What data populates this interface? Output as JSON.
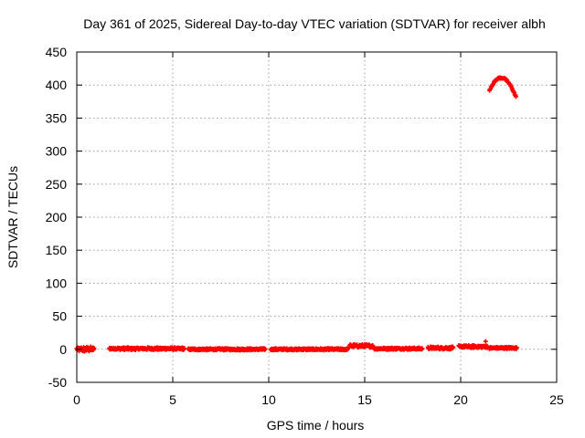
{
  "chart_data": {
    "type": "scatter",
    "title": "Day 361 of 2025, Sidereal Day-to-day VTEC variation (SDTVAR) for receiver albh",
    "xlabel": "GPS time / hours",
    "ylabel": "SDTVAR / TECUs",
    "xlim": [
      0,
      25
    ],
    "ylim": [
      -50,
      450
    ],
    "xticks": [
      0,
      5,
      10,
      15,
      20,
      25
    ],
    "yticks": [
      -50,
      0,
      50,
      100,
      150,
      200,
      250,
      300,
      350,
      400,
      450
    ],
    "grid": true,
    "marker_color": "#ff0000",
    "series": [
      {
        "name": "SDTVAR",
        "segments": [
          {
            "x_start": 0.0,
            "x_end": 0.9,
            "y_base": 0,
            "y_noise": 4
          },
          {
            "x_start": 1.7,
            "x_end": 5.6,
            "y_base": 1,
            "y_noise": 2
          },
          {
            "x_start": 5.8,
            "x_end": 9.8,
            "y_base": 0,
            "y_noise": 1.5
          },
          {
            "x_start": 10.1,
            "x_end": 14.1,
            "y_base": 0,
            "y_noise": 1.5
          },
          {
            "x_start": 14.2,
            "x_end": 15.4,
            "y_base": 5,
            "y_noise": 2.5
          },
          {
            "x_start": 15.5,
            "x_end": 18.0,
            "y_base": 1,
            "y_noise": 1.5
          },
          {
            "x_start": 18.3,
            "x_end": 19.6,
            "y_base": 2,
            "y_noise": 2
          },
          {
            "x_start": 19.9,
            "x_end": 21.4,
            "y_base": 4,
            "y_noise": 2
          },
          {
            "x_start": 21.5,
            "x_end": 22.9,
            "y_base": 2,
            "y_noise": 1.5
          }
        ],
        "outliers": [
          {
            "x": 21.3,
            "y": 12
          }
        ],
        "arc": {
          "x_start": 21.5,
          "x_end": 22.9,
          "x_peak": 22.1,
          "y_peak": 411,
          "y_end_left": 392,
          "y_end_right": 380
        }
      }
    ]
  }
}
